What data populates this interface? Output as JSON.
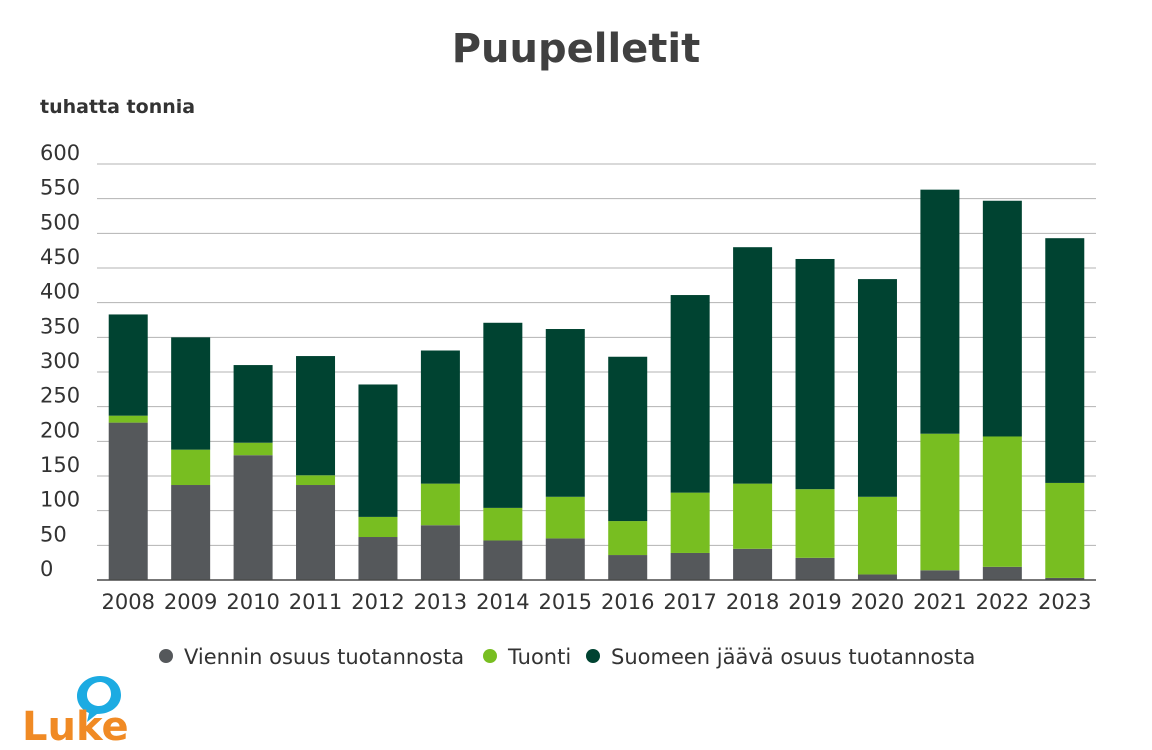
{
  "chart_data": {
    "type": "bar",
    "stacked": true,
    "title": "Puupelletit",
    "ylabel": "tuhatta tonnia",
    "xlabel": "",
    "ylim": [
      0,
      600
    ],
    "yticks": [
      0,
      50,
      100,
      150,
      200,
      250,
      300,
      350,
      400,
      450,
      500,
      550,
      600
    ],
    "grid": true,
    "legend_position": "bottom",
    "categories": [
      "2008",
      "2009",
      "2010",
      "2011",
      "2012",
      "2013",
      "2014",
      "2015",
      "2016",
      "2017",
      "2018",
      "2019",
      "2020",
      "2021",
      "2022",
      "2023"
    ],
    "series": [
      {
        "name": "Viennin osuus tuotannosta",
        "color": "#55585b",
        "values": [
          227,
          137,
          180,
          137,
          62,
          79,
          57,
          60,
          36,
          39,
          45,
          32,
          8,
          14,
          19,
          3
        ]
      },
      {
        "name": "Tuonti",
        "color": "#78be21",
        "values": [
          10,
          51,
          18,
          14,
          29,
          60,
          47,
          60,
          49,
          87,
          94,
          99,
          112,
          197,
          188,
          137
        ]
      },
      {
        "name": "Suomeen jäävä osuus tuotannosta",
        "color": "#004331",
        "values": [
          146,
          162,
          112,
          172,
          191,
          192,
          267,
          242,
          237,
          285,
          341,
          332,
          314,
          352,
          340,
          353
        ]
      }
    ]
  },
  "branding": {
    "logo_text": "Luke",
    "logo_color": "#f08a24",
    "logo_bubble_color": "#1cabe2"
  }
}
